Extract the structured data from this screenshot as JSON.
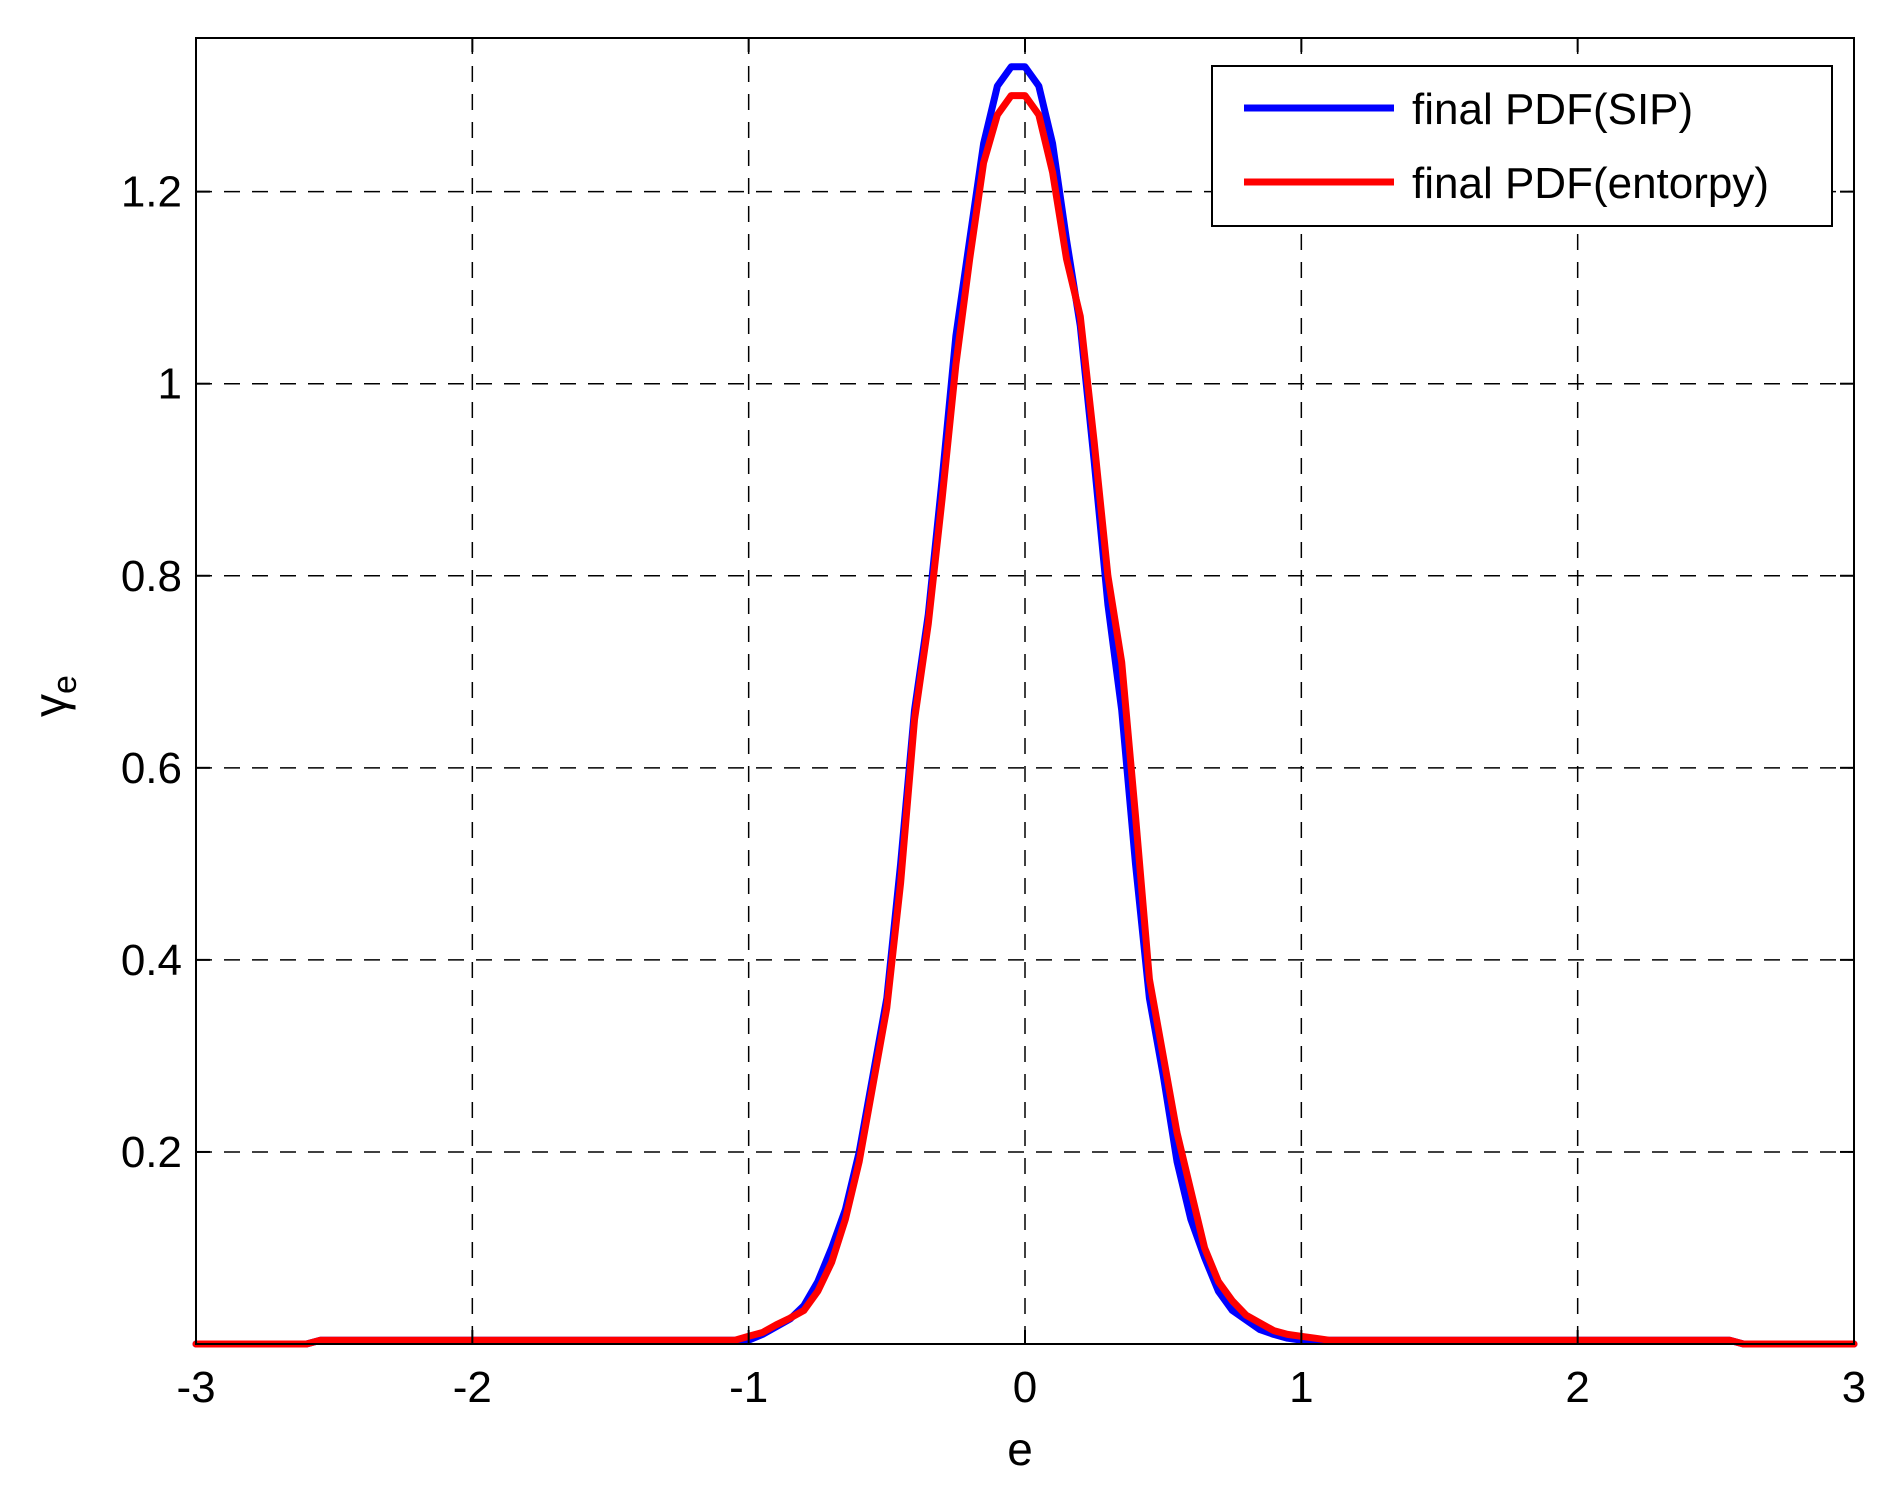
{
  "chart_data": {
    "type": "line",
    "title": "",
    "xlabel": "e",
    "ylabel": "γ",
    "ylabel_subscript": "e",
    "xlim": [
      -3,
      3
    ],
    "ylim": [
      0,
      1.36
    ],
    "xticks": [
      -3,
      -2,
      -1,
      0,
      1,
      2,
      3
    ],
    "xtick_labels": [
      "-3",
      "-2",
      "-1",
      "0",
      "1",
      "2",
      "3"
    ],
    "yticks": [
      0.2,
      0.4,
      0.6,
      0.8,
      1.0,
      1.2
    ],
    "ytick_labels": [
      "0.2",
      "0.4",
      "0.6",
      "0.8",
      "1",
      "1.2"
    ],
    "grid": true,
    "grid_style": "dashed",
    "legend_position": "top-right",
    "series": [
      {
        "name": "final PDF(SIP)",
        "color": "#0000ff",
        "x": [
          -3.0,
          -2.6,
          -2.55,
          -1.0,
          -0.95,
          -0.9,
          -0.85,
          -0.8,
          -0.75,
          -0.7,
          -0.65,
          -0.6,
          -0.55,
          -0.5,
          -0.45,
          -0.4,
          -0.35,
          -0.3,
          -0.25,
          -0.2,
          -0.15,
          -0.1,
          -0.05,
          0.0,
          0.05,
          0.1,
          0.15,
          0.2,
          0.25,
          0.3,
          0.35,
          0.4,
          0.45,
          0.5,
          0.55,
          0.6,
          0.65,
          0.7,
          0.75,
          0.8,
          0.85,
          0.9,
          0.95,
          1.0,
          1.05,
          2.55,
          2.6,
          3.0
        ],
        "y": [
          0.0,
          0.0,
          0.004,
          0.004,
          0.01,
          0.018,
          0.026,
          0.04,
          0.065,
          0.1,
          0.14,
          0.2,
          0.28,
          0.36,
          0.5,
          0.66,
          0.76,
          0.9,
          1.05,
          1.15,
          1.25,
          1.31,
          1.33,
          1.33,
          1.31,
          1.25,
          1.15,
          1.06,
          0.92,
          0.77,
          0.66,
          0.5,
          0.36,
          0.28,
          0.19,
          0.13,
          0.09,
          0.055,
          0.035,
          0.025,
          0.015,
          0.01,
          0.006,
          0.004,
          0.004,
          0.004,
          0.0,
          0.0
        ]
      },
      {
        "name": "final PDF(entorpy)",
        "color": "#ff0000",
        "x": [
          -3.0,
          -2.6,
          -2.55,
          -1.05,
          -1.0,
          -0.95,
          -0.9,
          -0.85,
          -0.8,
          -0.75,
          -0.7,
          -0.65,
          -0.6,
          -0.55,
          -0.5,
          -0.45,
          -0.4,
          -0.35,
          -0.3,
          -0.25,
          -0.2,
          -0.15,
          -0.1,
          -0.05,
          0.0,
          0.05,
          0.1,
          0.15,
          0.2,
          0.25,
          0.3,
          0.35,
          0.4,
          0.45,
          0.5,
          0.55,
          0.6,
          0.65,
          0.7,
          0.75,
          0.8,
          0.85,
          0.9,
          0.95,
          1.0,
          1.05,
          1.1,
          2.55,
          2.6,
          3.0
        ],
        "y": [
          0.0,
          0.0,
          0.004,
          0.004,
          0.008,
          0.012,
          0.02,
          0.027,
          0.035,
          0.055,
          0.085,
          0.13,
          0.19,
          0.27,
          0.35,
          0.48,
          0.65,
          0.75,
          0.88,
          1.02,
          1.13,
          1.23,
          1.28,
          1.3,
          1.3,
          1.28,
          1.22,
          1.13,
          1.07,
          0.94,
          0.8,
          0.71,
          0.55,
          0.38,
          0.3,
          0.22,
          0.16,
          0.1,
          0.065,
          0.045,
          0.03,
          0.022,
          0.014,
          0.01,
          0.008,
          0.006,
          0.004,
          0.004,
          0.0,
          0.0
        ]
      }
    ]
  }
}
